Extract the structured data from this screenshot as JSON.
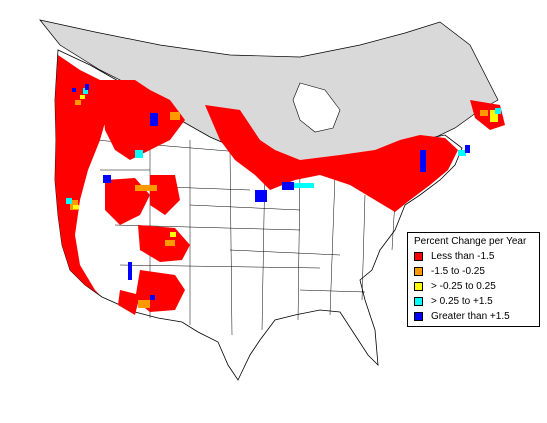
{
  "colors": {
    "canada_north": "#d9d9d9",
    "land": "#ffffff",
    "outline": "#000000",
    "red": "#ff0000",
    "orange": "#ff9900",
    "yellow": "#ffff00",
    "cyan": "#00ffff",
    "blue": "#0000ff"
  },
  "legend": {
    "title": "Percent Change per Year",
    "items": [
      {
        "label": "Less than -1.5",
        "color": "#ff0000"
      },
      {
        "label": "-1.5 to -0.25",
        "color": "#ff9900"
      },
      {
        "label": "> -0.25 to 0.25",
        "color": "#ffff00"
      },
      {
        "label": "> 0.25 to +1.5",
        "color": "#00ffff"
      },
      {
        "label": "Greater than +1.5",
        "color": "#0000ff"
      }
    ]
  }
}
